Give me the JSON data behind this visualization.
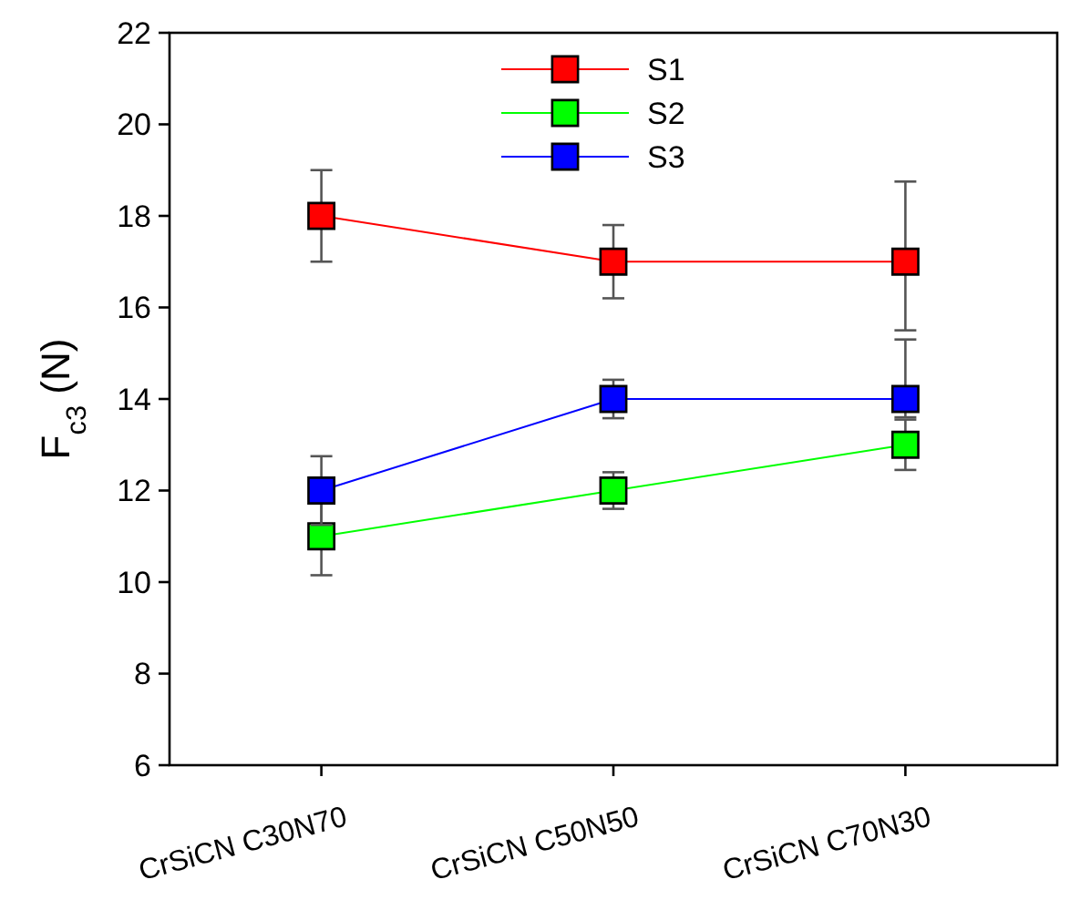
{
  "chart_data": {
    "type": "line",
    "ylabel": "F$_{c3}$ (N)",
    "categories": [
      "CrSiCN C30N70",
      "CrSiCN C50N50",
      "CrSiCN C70N30"
    ],
    "ylim": [
      6,
      22
    ],
    "yticks": [
      6,
      8,
      10,
      12,
      14,
      16,
      18,
      20,
      22
    ],
    "marker": "square",
    "legend": "top",
    "grid": false,
    "series": [
      {
        "name": "S1",
        "color": "#ff0000",
        "values": [
          18,
          17,
          17
        ],
        "errors": [
          1,
          0.8,
          [
            15.5,
            18.75
          ]
        ]
      },
      {
        "name": "S2",
        "color": "#00ff00",
        "values": [
          11,
          12,
          13
        ],
        "errors": [
          0.85,
          0.4,
          0.55
        ]
      },
      {
        "name": "S3",
        "color": "#0000ff",
        "values": [
          12,
          14,
          14
        ],
        "errors": [
          0.75,
          0.42,
          [
            13.6,
            15.3
          ]
        ]
      }
    ]
  }
}
